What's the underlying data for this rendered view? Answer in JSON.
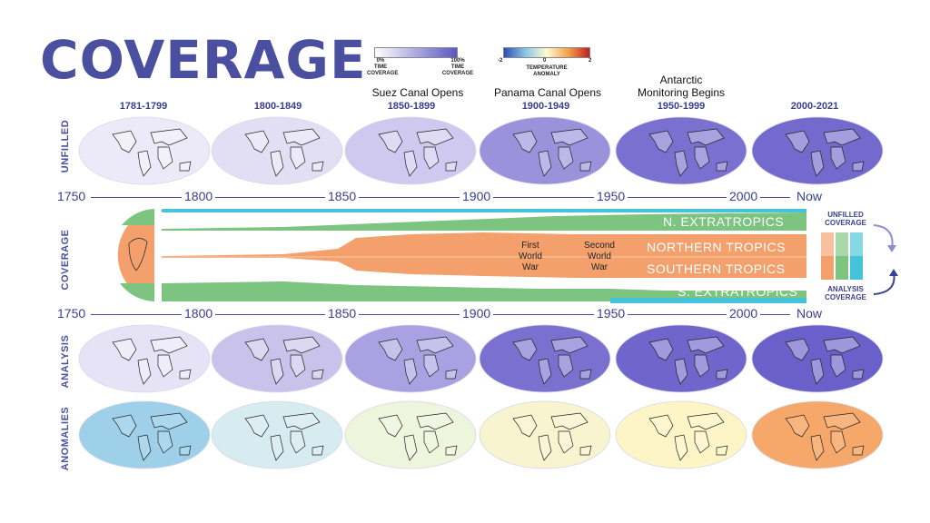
{
  "title": "COVERAGE",
  "legends": {
    "coverage": {
      "min_label": "0%\nTIME\nCOVERAGE",
      "max_label": "100%\nTIME\nCOVERAGE",
      "colors": [
        "#ffffff",
        "#5b55c4"
      ]
    },
    "anomaly": {
      "min": "-2",
      "mid": "0",
      "max": "2",
      "label": "TEMPERATURE\nANOMALY",
      "colors": [
        "#2c4fb3",
        "#8cc4e6",
        "#fffbd0",
        "#f5a04a",
        "#c41e1e"
      ]
    }
  },
  "milestones": [
    {
      "text": "Suez Canal Opens"
    },
    {
      "text": "Panama Canal Opens"
    },
    {
      "text": "Antarctic\nMonitoring Begins"
    }
  ],
  "periods": [
    "1781-1799",
    "1800-1849",
    "1850-1899",
    "1900-1949",
    "1950-1999",
    "2000-2021"
  ],
  "row_labels": {
    "unfilled": "UNFILLED",
    "coverage": "COVERAGE",
    "analysis": "ANALYSIS",
    "anomalies": "ANOMALIES"
  },
  "axis_years": [
    "1750",
    "1800",
    "1850",
    "1900",
    "1950",
    "2000",
    "Now"
  ],
  "bands": [
    "N. EXTRATROPICS",
    "NORTHERN TROPICS",
    "SOUTHERN TROPICS",
    "S. EXTRATROPICS"
  ],
  "wars": [
    "First\nWorld\nWar",
    "Second\nWorld\nWar"
  ],
  "side_labels": {
    "unfilled": "UNFILLED\nCOVERAGE",
    "analysis": "ANALYSIS\nCOVERAGE"
  },
  "colors": {
    "accent": "#4a4fa0",
    "coverage_purple": "#6b63c9",
    "extratropics_green": "#7cc47f",
    "tropics_orange": "#f3a06d",
    "analysis_cyan": "#45c3d8"
  }
}
